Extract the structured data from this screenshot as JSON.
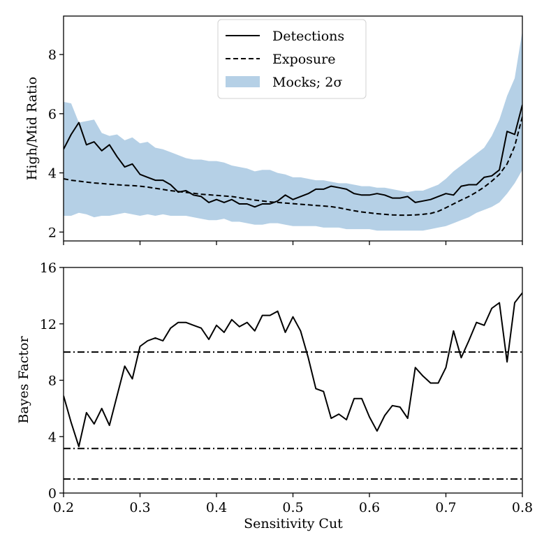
{
  "chart_data": [
    {
      "type": "line",
      "ylabel": "High/Mid Ratio",
      "xlim": [
        0.2,
        0.8
      ],
      "ylim": [
        1.7,
        9.3
      ],
      "x_ticks": [
        "",
        "",
        "",
        "",
        "",
        "",
        ""
      ],
      "y_ticks": [
        {
          "value": 2,
          "label": "2"
        },
        {
          "value": 4,
          "label": "4"
        },
        {
          "value": 6,
          "label": "6"
        },
        {
          "value": 8,
          "label": "8"
        }
      ],
      "legend": {
        "placement": "upper-center",
        "entries": [
          {
            "label": "Detections",
            "style": "solid"
          },
          {
            "label": "Exposure",
            "style": "dashed"
          },
          {
            "label": "Mocks; 2σ",
            "style": "band"
          }
        ]
      },
      "band": {
        "name": "Mocks; 2σ",
        "color": "#b5d0e6",
        "x": [
          0.2,
          0.21,
          0.22,
          0.23,
          0.24,
          0.25,
          0.26,
          0.27,
          0.28,
          0.29,
          0.3,
          0.31,
          0.32,
          0.33,
          0.34,
          0.35,
          0.36,
          0.37,
          0.38,
          0.39,
          0.4,
          0.41,
          0.42,
          0.43,
          0.44,
          0.45,
          0.46,
          0.47,
          0.48,
          0.49,
          0.5,
          0.51,
          0.52,
          0.53,
          0.54,
          0.55,
          0.56,
          0.57,
          0.58,
          0.59,
          0.6,
          0.61,
          0.62,
          0.63,
          0.64,
          0.65,
          0.66,
          0.67,
          0.68,
          0.69,
          0.7,
          0.71,
          0.72,
          0.73,
          0.74,
          0.75,
          0.76,
          0.77,
          0.78,
          0.79,
          0.8
        ],
        "upper": [
          6.4,
          6.35,
          5.7,
          5.75,
          5.8,
          5.35,
          5.25,
          5.3,
          5.1,
          5.2,
          5.0,
          5.05,
          4.85,
          4.8,
          4.7,
          4.6,
          4.5,
          4.45,
          4.45,
          4.4,
          4.4,
          4.35,
          4.25,
          4.2,
          4.15,
          4.05,
          4.1,
          4.1,
          4.0,
          3.95,
          3.85,
          3.85,
          3.8,
          3.75,
          3.75,
          3.7,
          3.65,
          3.65,
          3.6,
          3.55,
          3.55,
          3.5,
          3.5,
          3.45,
          3.4,
          3.35,
          3.4,
          3.4,
          3.5,
          3.6,
          3.8,
          4.05,
          4.25,
          4.45,
          4.65,
          4.85,
          5.25,
          5.8,
          6.6,
          7.2,
          8.8
        ],
        "lower": [
          2.55,
          2.55,
          2.65,
          2.6,
          2.5,
          2.55,
          2.55,
          2.6,
          2.65,
          2.6,
          2.55,
          2.6,
          2.55,
          2.6,
          2.55,
          2.55,
          2.55,
          2.5,
          2.45,
          2.4,
          2.4,
          2.45,
          2.35,
          2.35,
          2.3,
          2.25,
          2.25,
          2.3,
          2.3,
          2.25,
          2.2,
          2.2,
          2.2,
          2.2,
          2.15,
          2.15,
          2.15,
          2.1,
          2.1,
          2.1,
          2.1,
          2.05,
          2.05,
          2.05,
          2.05,
          2.05,
          2.05,
          2.05,
          2.1,
          2.15,
          2.2,
          2.3,
          2.4,
          2.5,
          2.65,
          2.75,
          2.85,
          3.0,
          3.3,
          3.65,
          4.1
        ]
      },
      "series": [
        {
          "name": "Detections",
          "style": "solid",
          "x": [
            0.2,
            0.21,
            0.22,
            0.23,
            0.24,
            0.25,
            0.26,
            0.27,
            0.28,
            0.29,
            0.3,
            0.31,
            0.32,
            0.33,
            0.34,
            0.35,
            0.36,
            0.37,
            0.38,
            0.39,
            0.4,
            0.41,
            0.42,
            0.43,
            0.44,
            0.45,
            0.46,
            0.47,
            0.48,
            0.49,
            0.5,
            0.51,
            0.52,
            0.53,
            0.54,
            0.55,
            0.56,
            0.57,
            0.58,
            0.59,
            0.6,
            0.61,
            0.62,
            0.63,
            0.64,
            0.65,
            0.66,
            0.67,
            0.68,
            0.69,
            0.7,
            0.71,
            0.72,
            0.73,
            0.74,
            0.75,
            0.76,
            0.77,
            0.78,
            0.79,
            0.8
          ],
          "values": [
            4.8,
            5.3,
            5.7,
            4.95,
            5.05,
            4.75,
            4.95,
            4.55,
            4.2,
            4.3,
            3.95,
            3.85,
            3.75,
            3.75,
            3.6,
            3.35,
            3.4,
            3.25,
            3.2,
            3.0,
            3.1,
            3.0,
            3.1,
            2.95,
            2.95,
            2.85,
            2.95,
            2.95,
            3.05,
            3.25,
            3.1,
            3.2,
            3.3,
            3.45,
            3.45,
            3.55,
            3.5,
            3.45,
            3.3,
            3.25,
            3.25,
            3.3,
            3.25,
            3.15,
            3.15,
            3.2,
            3.0,
            3.05,
            3.1,
            3.2,
            3.3,
            3.25,
            3.55,
            3.6,
            3.6,
            3.85,
            3.9,
            4.1,
            5.4,
            5.3,
            6.3
          ]
        },
        {
          "name": "Exposure",
          "style": "dashed",
          "x": [
            0.2,
            0.21,
            0.22,
            0.23,
            0.24,
            0.25,
            0.26,
            0.27,
            0.28,
            0.29,
            0.3,
            0.31,
            0.32,
            0.33,
            0.34,
            0.35,
            0.36,
            0.37,
            0.38,
            0.39,
            0.4,
            0.41,
            0.42,
            0.43,
            0.44,
            0.45,
            0.46,
            0.47,
            0.48,
            0.49,
            0.5,
            0.51,
            0.52,
            0.53,
            0.54,
            0.55,
            0.56,
            0.57,
            0.58,
            0.59,
            0.6,
            0.61,
            0.62,
            0.63,
            0.64,
            0.65,
            0.66,
            0.67,
            0.68,
            0.69,
            0.7,
            0.71,
            0.72,
            0.73,
            0.74,
            0.75,
            0.76,
            0.77,
            0.78,
            0.79,
            0.8
          ],
          "values": [
            3.8,
            3.75,
            3.72,
            3.69,
            3.66,
            3.64,
            3.62,
            3.6,
            3.58,
            3.57,
            3.55,
            3.52,
            3.48,
            3.44,
            3.4,
            3.37,
            3.34,
            3.31,
            3.28,
            3.26,
            3.24,
            3.22,
            3.2,
            3.16,
            3.12,
            3.08,
            3.05,
            3.02,
            3.0,
            2.98,
            2.96,
            2.94,
            2.92,
            2.9,
            2.88,
            2.86,
            2.82,
            2.77,
            2.72,
            2.68,
            2.65,
            2.62,
            2.6,
            2.58,
            2.57,
            2.57,
            2.58,
            2.6,
            2.63,
            2.7,
            2.82,
            2.95,
            3.08,
            3.2,
            3.35,
            3.52,
            3.72,
            3.95,
            4.3,
            4.9,
            5.9
          ]
        }
      ]
    },
    {
      "type": "line",
      "xlabel": "Sensitivity Cut",
      "ylabel": "Bayes Factor",
      "xlim": [
        0.2,
        0.8
      ],
      "ylim": [
        0,
        16
      ],
      "x_ticks": [
        {
          "value": 0.2,
          "label": "0.2"
        },
        {
          "value": 0.3,
          "label": "0.3"
        },
        {
          "value": 0.4,
          "label": "0.4"
        },
        {
          "value": 0.5,
          "label": "0.5"
        },
        {
          "value": 0.6,
          "label": "0.6"
        },
        {
          "value": 0.7,
          "label": "0.7"
        },
        {
          "value": 0.8,
          "label": "0.8"
        }
      ],
      "y_ticks": [
        {
          "value": 0,
          "label": "0"
        },
        {
          "value": 4,
          "label": "4"
        },
        {
          "value": 8,
          "label": "8"
        },
        {
          "value": 12,
          "label": "12"
        },
        {
          "value": 16,
          "label": "16"
        }
      ],
      "reference_lines": [
        {
          "y": 1,
          "style": "dashdot"
        },
        {
          "y": 3.16,
          "style": "dashdot"
        },
        {
          "y": 10,
          "style": "dashdot"
        }
      ],
      "series": [
        {
          "style": "solid",
          "x": [
            0.2,
            0.21,
            0.22,
            0.23,
            0.24,
            0.25,
            0.26,
            0.27,
            0.28,
            0.29,
            0.3,
            0.31,
            0.32,
            0.33,
            0.34,
            0.35,
            0.36,
            0.37,
            0.38,
            0.39,
            0.4,
            0.41,
            0.42,
            0.43,
            0.44,
            0.45,
            0.46,
            0.47,
            0.48,
            0.49,
            0.5,
            0.51,
            0.52,
            0.53,
            0.54,
            0.55,
            0.56,
            0.57,
            0.58,
            0.59,
            0.6,
            0.61,
            0.62,
            0.63,
            0.64,
            0.65,
            0.66,
            0.67,
            0.68,
            0.69,
            0.7,
            0.71,
            0.72,
            0.73,
            0.74,
            0.75,
            0.76,
            0.77,
            0.78,
            0.79,
            0.8
          ],
          "values": [
            6.9,
            5.0,
            3.3,
            5.7,
            4.9,
            6.0,
            4.8,
            6.9,
            9.0,
            8.1,
            10.4,
            10.8,
            11.0,
            10.8,
            11.7,
            12.1,
            12.1,
            11.9,
            11.7,
            10.9,
            11.9,
            11.4,
            12.3,
            11.8,
            12.1,
            11.5,
            12.6,
            12.6,
            12.9,
            11.4,
            12.5,
            11.5,
            9.6,
            7.4,
            7.2,
            5.3,
            5.6,
            5.2,
            6.7,
            6.7,
            5.4,
            4.4,
            5.5,
            6.2,
            6.1,
            5.3,
            8.9,
            8.3,
            7.8,
            7.8,
            8.9,
            11.5,
            9.6,
            10.8,
            12.1,
            11.9,
            13.1,
            13.5,
            9.3,
            13.5,
            14.2
          ]
        }
      ]
    }
  ]
}
